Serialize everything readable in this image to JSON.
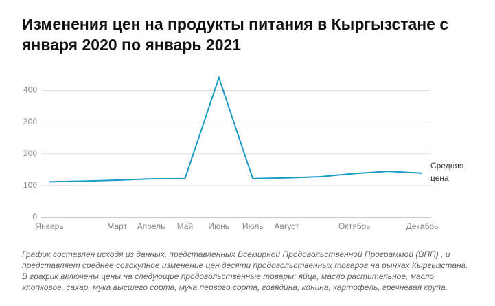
{
  "chart_data": {
    "type": "line",
    "title": "Изменения цен на продукты питания в Кыргызстане с января 2020 по январь 2021",
    "categories": [
      "Январь",
      null,
      "Март",
      "Апрель",
      "Май",
      "Июнь",
      "Июль",
      "Август",
      null,
      "Октябрь",
      null,
      "Декабрь"
    ],
    "series": [
      {
        "name": "Средняя цена",
        "color": "#1a9bc7",
        "values": [
          112,
          114,
          117,
          121,
          122,
          440,
          122,
          124,
          128,
          138,
          145,
          139
        ]
      }
    ],
    "ylim": [
      0,
      440
    ],
    "yticks": [
      0,
      100,
      200,
      300,
      400
    ],
    "grid": true,
    "note": "График составлен исходя из данных, представленных Всемирной Продовольственной Программой (ВПП) , и представляет среднее совокупное изменение цен десяти продовольственных товаров на рынках Кыргызстана. В график включены цены на следующие продовольственные товары: яйца, масло растительное, масло хлопковое, сахар, мука высшего сорта, мука первого сорта, говядина, конина, картофель, гречневая крупа."
  }
}
